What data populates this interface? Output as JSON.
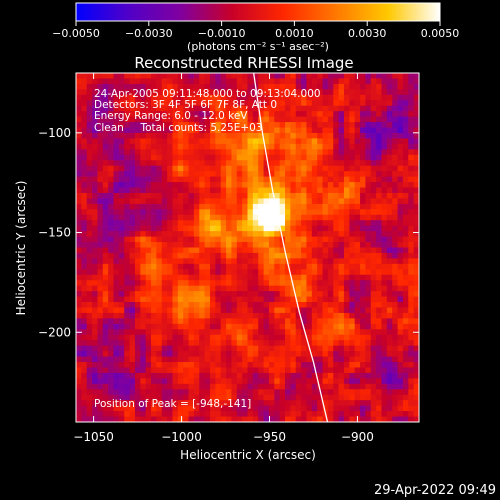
{
  "chart_data": {
    "type": "heatmap",
    "title": "Reconstructed RHESSI Image",
    "xlabel": "Heliocentric X (arcsec)",
    "ylabel": "Heliocentric Y (arcsec)",
    "xlim": [
      -1060,
      -865
    ],
    "ylim": [
      -245,
      -70
    ],
    "x_ticks": [
      -1050,
      -1000,
      -950,
      -900
    ],
    "x_tick_labels": [
      "−1050",
      "−1000",
      "−950",
      "−900"
    ],
    "y_ticks": [
      -100,
      -150,
      -200
    ],
    "y_tick_labels": [
      "−100",
      "−150",
      "−200"
    ],
    "colorbar": {
      "min": -0.005,
      "max": 0.005,
      "ticks": [
        -0.005,
        -0.003,
        -0.001,
        0.001,
        0.003,
        0.005
      ],
      "tick_labels": [
        "−0.0050",
        "−0.0030",
        "−0.0010",
        "0.0010",
        "0.0030",
        "0.0050"
      ],
      "units": "(photons cm⁻² s⁻¹ asec⁻²)",
      "colormap": [
        "#0000ff",
        "#5000c8",
        "#8000a0",
        "#c80028",
        "#ff2800",
        "#ff7800",
        "#ffc800",
        "#ffffff"
      ]
    },
    "annotations": [
      "24-Apr-2005 09:11:48.000 to 09:13:04.000",
      "Detectors: 3F 4F 5F 6F 7F 8F, Att 0",
      "Energy Range: 6.0 - 12.0 keV",
      "Clean     Total counts: 5.25E+03"
    ],
    "peak_label": "Position of Peak = [-948,-141]",
    "peak": {
      "x": -948,
      "y": -141
    },
    "limb": [
      {
        "x": -959,
        "y": -70
      },
      {
        "x": -954,
        "y": -100
      },
      {
        "x": -948,
        "y": -130
      },
      {
        "x": -941,
        "y": -160
      },
      {
        "x": -933,
        "y": -190
      },
      {
        "x": -925,
        "y": -215
      },
      {
        "x": -917,
        "y": -245
      }
    ],
    "sources": [
      {
        "x": -948,
        "y": -140,
        "amp": 0.0058,
        "sigma": 7
      },
      {
        "x": -955,
        "y": -145,
        "amp": 0.0022,
        "sigma": 18
      },
      {
        "x": -965,
        "y": -105,
        "amp": 0.003,
        "sigma": 12
      },
      {
        "x": -930,
        "y": -110,
        "amp": 0.0028,
        "sigma": 10
      },
      {
        "x": -910,
        "y": -130,
        "amp": 0.0022,
        "sigma": 8
      },
      {
        "x": -985,
        "y": -150,
        "amp": 0.0026,
        "sigma": 10
      },
      {
        "x": -1000,
        "y": -115,
        "amp": 0.002,
        "sigma": 8
      },
      {
        "x": -995,
        "y": -185,
        "amp": 0.0024,
        "sigma": 9
      },
      {
        "x": -935,
        "y": -175,
        "amp": 0.002,
        "sigma": 9
      },
      {
        "x": -965,
        "y": -200,
        "amp": 0.0022,
        "sigma": 8
      },
      {
        "x": -1020,
        "y": -165,
        "amp": 0.0016,
        "sigma": 8
      },
      {
        "x": -910,
        "y": -200,
        "amp": 0.0014,
        "sigma": 8
      },
      {
        "x": -1040,
        "y": -135,
        "amp": -0.0014,
        "sigma": 12
      },
      {
        "x": -1040,
        "y": -215,
        "amp": -0.0014,
        "sigma": 12
      },
      {
        "x": -880,
        "y": -100,
        "amp": -0.0016,
        "sigma": 12
      },
      {
        "x": -880,
        "y": -225,
        "amp": -0.0014,
        "sigma": 12
      },
      {
        "x": -1045,
        "y": -85,
        "amp": -0.001,
        "sigma": 10
      }
    ]
  },
  "footer": {
    "timestamp": "29-Apr-2022 09:49"
  }
}
